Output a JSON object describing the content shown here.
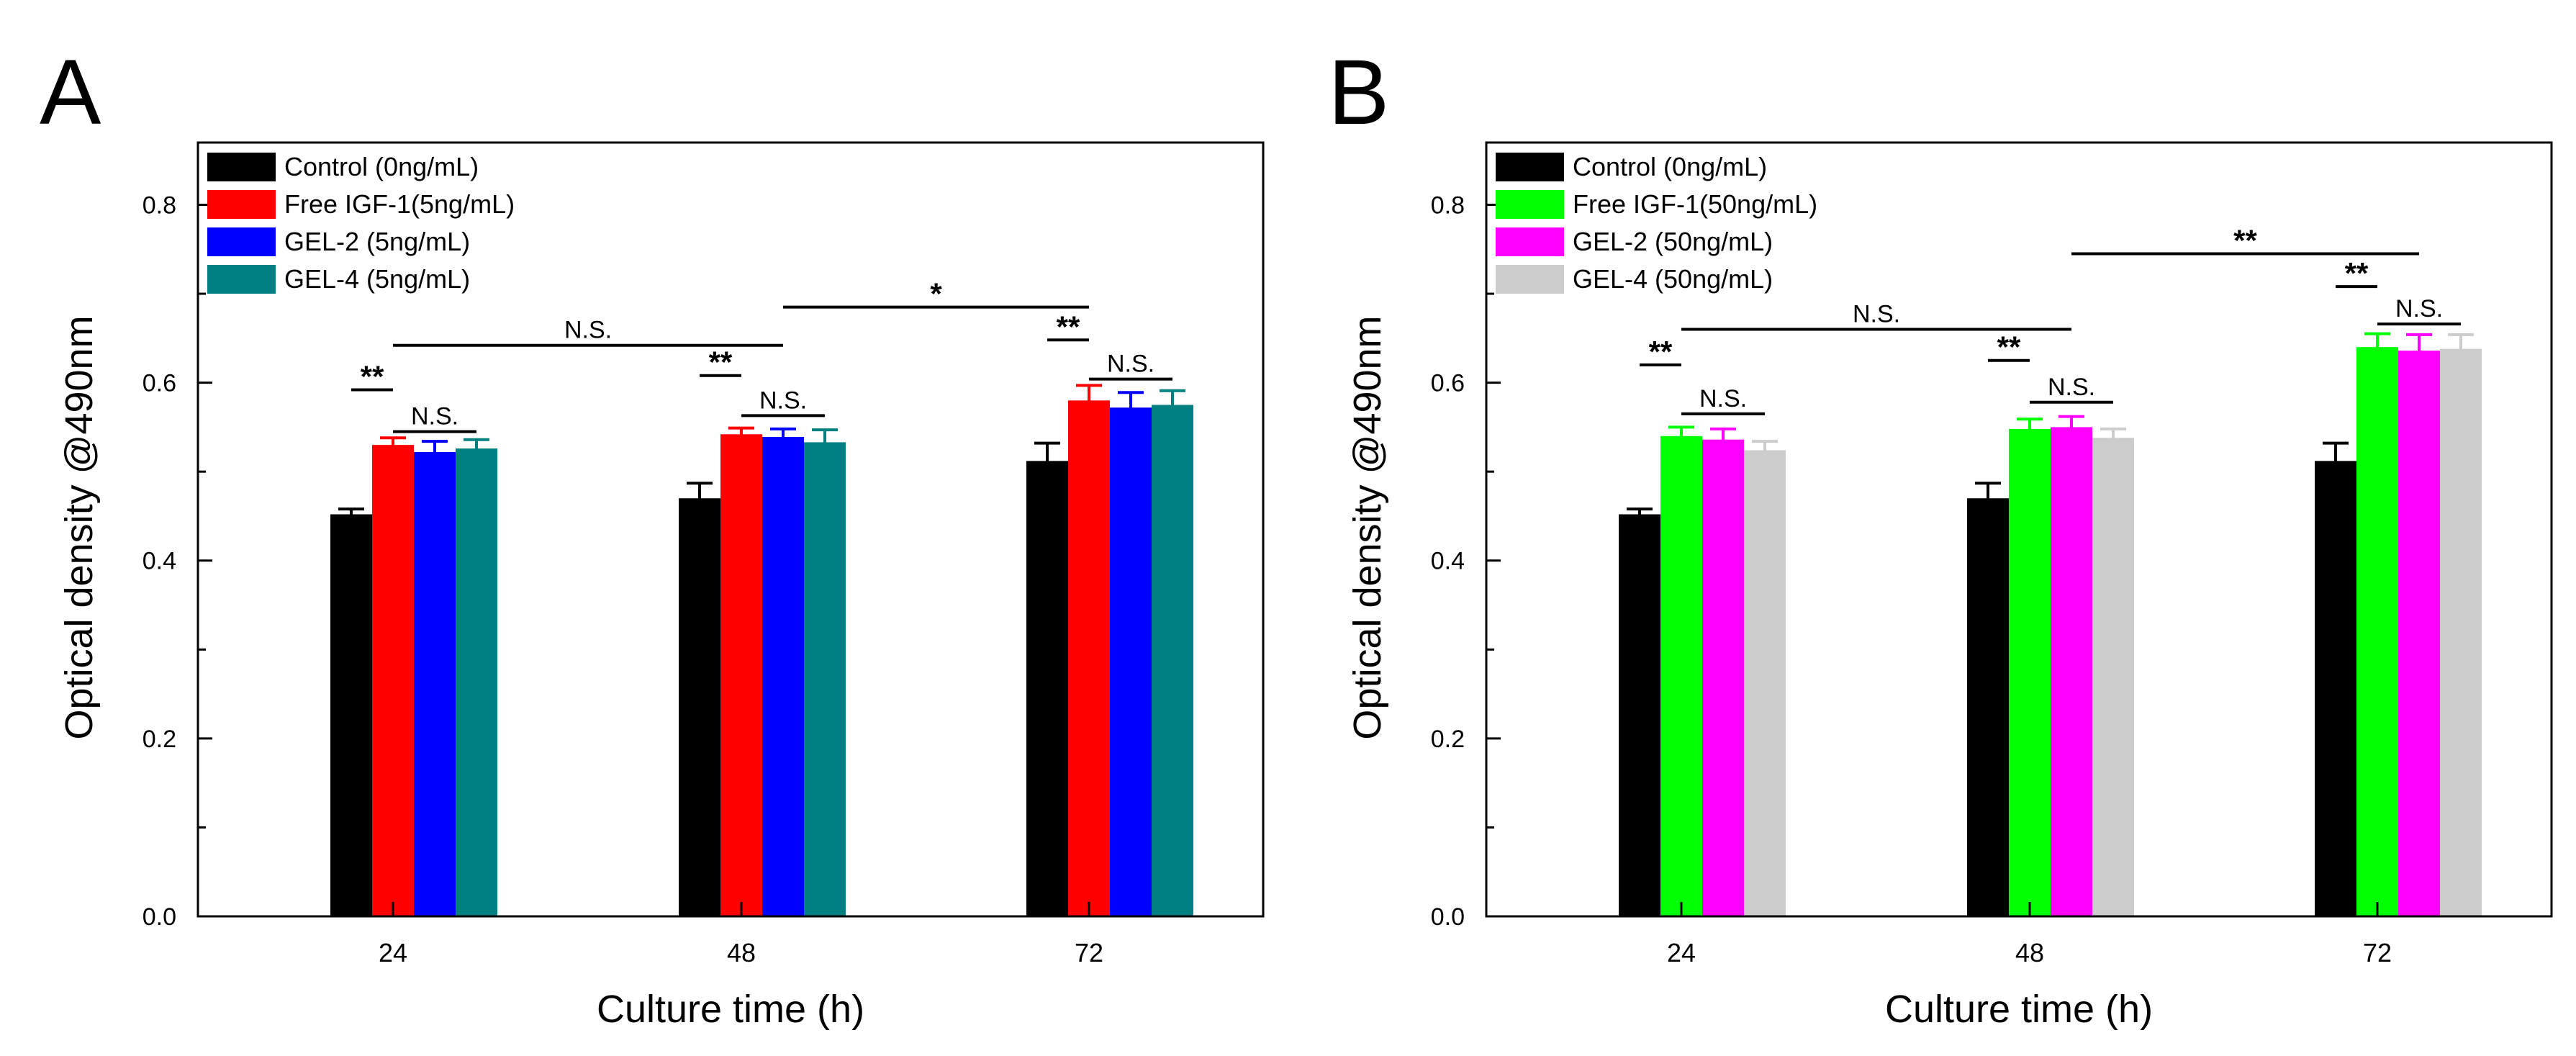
{
  "chart_data": [
    {
      "panel_label": "A",
      "type": "bar",
      "xlabel": "Culture time (h)",
      "ylabel": "Optical density @490nm",
      "ylim": [
        0.0,
        0.87
      ],
      "yticks": [
        "0.0",
        "0.2",
        "0.4",
        "0.6",
        "0.8"
      ],
      "categories": [
        "24",
        "48",
        "72"
      ],
      "legend_position": "top-left",
      "grid": false,
      "series": [
        {
          "name": "Control (0ng/mL)",
          "color": "#000000",
          "values": [
            0.452,
            0.47,
            0.512
          ],
          "errors": [
            0.006,
            0.017,
            0.02
          ]
        },
        {
          "name": "Free IGF-1(5ng/mL)",
          "color": "#ff0000",
          "values": [
            0.53,
            0.542,
            0.58
          ],
          "errors": [
            0.008,
            0.007,
            0.017
          ]
        },
        {
          "name": "GEL-2 (5ng/mL)",
          "color": "#0000ff",
          "values": [
            0.522,
            0.539,
            0.572
          ],
          "errors": [
            0.012,
            0.009,
            0.017
          ]
        },
        {
          "name": "GEL-4 (5ng/mL)",
          "color": "#008080",
          "values": [
            0.526,
            0.533,
            0.575
          ],
          "errors": [
            0.01,
            0.014,
            0.016
          ]
        }
      ],
      "significance": [
        {
          "label": "**",
          "y": 0.592,
          "from": [
            0,
            0
          ],
          "to": [
            0,
            1
          ]
        },
        {
          "label": "N.S.",
          "y": 0.545,
          "from": [
            0,
            1
          ],
          "to": [
            0,
            3
          ]
        },
        {
          "label": "N.S.",
          "y": 0.642,
          "from": [
            0,
            1
          ],
          "to": [
            1,
            2
          ]
        },
        {
          "label": "**",
          "y": 0.608,
          "from": [
            1,
            0
          ],
          "to": [
            1,
            1
          ]
        },
        {
          "label": "N.S.",
          "y": 0.563,
          "from": [
            1,
            1
          ],
          "to": [
            1,
            3
          ]
        },
        {
          "label": "*",
          "y": 0.685,
          "from": [
            1,
            2
          ],
          "to": [
            2,
            1
          ]
        },
        {
          "label": "**",
          "y": 0.648,
          "from": [
            2,
            0
          ],
          "to": [
            2,
            1
          ]
        },
        {
          "label": "N.S.",
          "y": 0.604,
          "from": [
            2,
            1
          ],
          "to": [
            2,
            3
          ]
        }
      ]
    },
    {
      "panel_label": "B",
      "type": "bar",
      "xlabel": "Culture time (h)",
      "ylabel": "Optical density @490nm",
      "ylim": [
        0.0,
        0.87
      ],
      "yticks": [
        "0.0",
        "0.2",
        "0.4",
        "0.6",
        "0.8"
      ],
      "categories": [
        "24",
        "48",
        "72"
      ],
      "legend_position": "top-left",
      "grid": false,
      "series": [
        {
          "name": "Control (0ng/mL)",
          "color": "#000000",
          "values": [
            0.452,
            0.47,
            0.512
          ],
          "errors": [
            0.006,
            0.017,
            0.02
          ]
        },
        {
          "name": "Free IGF-1(50ng/mL)",
          "color": "#00ff00",
          "values": [
            0.54,
            0.548,
            0.64
          ],
          "errors": [
            0.01,
            0.011,
            0.015
          ]
        },
        {
          "name": "GEL-2 (50ng/mL)",
          "color": "#ff00ff",
          "values": [
            0.536,
            0.55,
            0.636
          ],
          "errors": [
            0.012,
            0.012,
            0.018
          ]
        },
        {
          "name": "GEL-4 (50ng/mL)",
          "color": "#cccccc",
          "values": [
            0.524,
            0.538,
            0.638
          ],
          "errors": [
            0.01,
            0.01,
            0.016
          ]
        }
      ],
      "significance": [
        {
          "label": "**",
          "y": 0.62,
          "from": [
            0,
            0
          ],
          "to": [
            0,
            1
          ]
        },
        {
          "label": "N.S.",
          "y": 0.565,
          "from": [
            0,
            1
          ],
          "to": [
            0,
            3
          ]
        },
        {
          "label": "N.S.",
          "y": 0.66,
          "from": [
            0,
            1
          ],
          "to": [
            1,
            2
          ]
        },
        {
          "label": "**",
          "y": 0.625,
          "from": [
            1,
            0
          ],
          "to": [
            1,
            1
          ]
        },
        {
          "label": "N.S.",
          "y": 0.578,
          "from": [
            1,
            1
          ],
          "to": [
            1,
            3
          ]
        },
        {
          "label": "**",
          "y": 0.745,
          "from": [
            1,
            2
          ],
          "to": [
            2,
            2
          ]
        },
        {
          "label": "**",
          "y": 0.708,
          "from": [
            2,
            0
          ],
          "to": [
            2,
            1
          ]
        },
        {
          "label": "N.S.",
          "y": 0.666,
          "from": [
            2,
            1
          ],
          "to": [
            2,
            3
          ]
        }
      ]
    }
  ]
}
